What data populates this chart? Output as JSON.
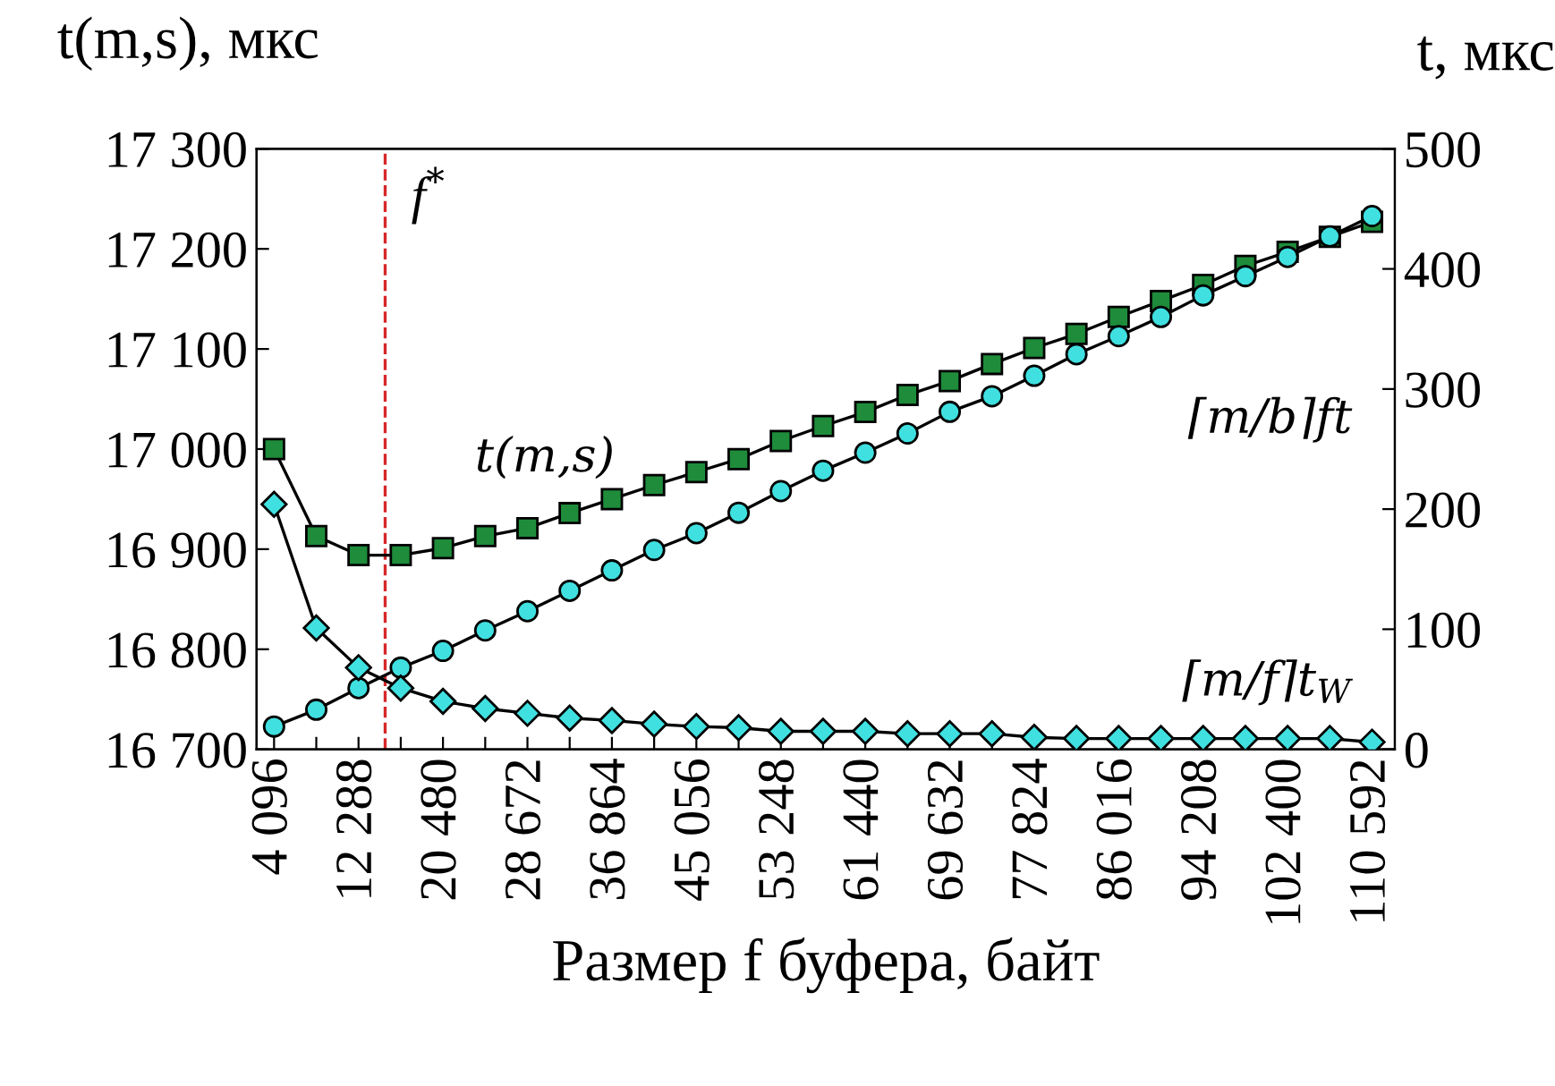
{
  "chart_data": {
    "type": "line",
    "xlabel": "Размер f буфера, байт",
    "ylabel": "t(m,s), мкс",
    "y2label": "t, мкс",
    "x": [
      4096,
      8192,
      12288,
      16384,
      20480,
      24576,
      28672,
      32768,
      36864,
      40960,
      45056,
      49152,
      53248,
      57344,
      61440,
      65536,
      69632,
      73728,
      77824,
      81920,
      86016,
      90112,
      94208,
      98304,
      102400,
      106496,
      110592
    ],
    "xlim": [
      2400,
      112800
    ],
    "xticks": [
      {
        "value": 4096,
        "label": "4 096"
      },
      {
        "value": 8192,
        "label": null
      },
      {
        "value": 12288,
        "label": "12 288"
      },
      {
        "value": 16384,
        "label": null
      },
      {
        "value": 20480,
        "label": "20 480"
      },
      {
        "value": 24576,
        "label": null
      },
      {
        "value": 28672,
        "label": "28 672"
      },
      {
        "value": 32768,
        "label": null
      },
      {
        "value": 36864,
        "label": "36 864"
      },
      {
        "value": 40960,
        "label": null
      },
      {
        "value": 45056,
        "label": "45 056"
      },
      {
        "value": 49152,
        "label": null
      },
      {
        "value": 53248,
        "label": "53 248"
      },
      {
        "value": 57344,
        "label": null
      },
      {
        "value": 61440,
        "label": "61 440"
      },
      {
        "value": 65536,
        "label": null
      },
      {
        "value": 69632,
        "label": "69 632"
      },
      {
        "value": 73728,
        "label": null
      },
      {
        "value": 77824,
        "label": "77 824"
      },
      {
        "value": 81920,
        "label": null
      },
      {
        "value": 86016,
        "label": "86 016"
      },
      {
        "value": 90112,
        "label": null
      },
      {
        "value": 94208,
        "label": "94 208"
      },
      {
        "value": 98304,
        "label": null
      },
      {
        "value": 102400,
        "label": "102 400"
      },
      {
        "value": 106496,
        "label": null
      },
      {
        "value": 110592,
        "label": "110 592"
      }
    ],
    "ylim": [
      16700,
      17300
    ],
    "yticks": [
      {
        "value": 16700,
        "label": "16 700"
      },
      {
        "value": 16800,
        "label": "16 800"
      },
      {
        "value": 16900,
        "label": "16 900"
      },
      {
        "value": 17000,
        "label": "17 000"
      },
      {
        "value": 17100,
        "label": "17 100"
      },
      {
        "value": 17200,
        "label": "17 200"
      },
      {
        "value": 17300,
        "label": "17 300"
      }
    ],
    "y2lim": [
      0,
      500
    ],
    "y2ticks": [
      0,
      100,
      200,
      300,
      400,
      500
    ],
    "grid": false,
    "legend": false,
    "line_style": "solid",
    "series": [
      {
        "name": "t(m,s)",
        "color": "#1e8c3a",
        "marker": "square",
        "values": [
          17000,
          16913,
          16894,
          16894,
          16901,
          16913,
          16921,
          16936,
          16950,
          16964,
          16977,
          16990,
          17008,
          17023,
          17037,
          17054,
          17068,
          17085,
          17101,
          17115,
          17132,
          17148,
          17164,
          17183,
          17197,
          17212,
          17227
        ]
      },
      {
        "name": "⌈m/b⌉ft",
        "color": "#40e0e0",
        "marker": "circle",
        "axis": "y2",
        "values": [
          19,
          33,
          51,
          68,
          82,
          99,
          115,
          132,
          149,
          166,
          180,
          197,
          215,
          232,
          247,
          263,
          281,
          294,
          311,
          329,
          344,
          360,
          378,
          394,
          410,
          427,
          444
        ]
      },
      {
        "name": "⌈m/f⌉t$_{W}$",
        "color": "#40e0e0",
        "marker": "diamond",
        "axis": "y2",
        "values": [
          204,
          101,
          68,
          51,
          40,
          34,
          30,
          26,
          24,
          21,
          19,
          18,
          15,
          15,
          15,
          13,
          13,
          13,
          10,
          9,
          9,
          9,
          9,
          9,
          9,
          9,
          6
        ]
      }
    ],
    "ref_lines": [
      {
        "axis": "x",
        "value": 14870,
        "label": "f$^{*}$",
        "color": "#d62728",
        "line_style": "dashed"
      }
    ]
  }
}
